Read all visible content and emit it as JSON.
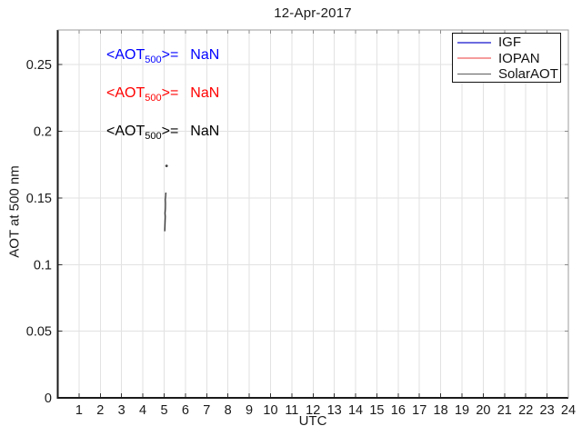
{
  "figure": {
    "background": "#ffffff",
    "grid_color": "#e2e2e2",
    "axis_color": "#1a1a1a",
    "box_color": "#9c9c9c"
  },
  "title": "12-Apr-2017",
  "annotations": [
    {
      "prefix": "<AOT",
      "sub": "500",
      "suffix": ">=",
      "value": "NaN",
      "color": "#0000ff"
    },
    {
      "prefix": "<AOT",
      "sub": "500",
      "suffix": ">=",
      "value": "NaN",
      "color": "#ff0000"
    },
    {
      "prefix": "<AOT",
      "sub": "500",
      "suffix": ">=",
      "value": "NaN",
      "color": "#000000"
    }
  ],
  "legend": {
    "items": [
      {
        "label": "IGF",
        "color": "#6b6bdf",
        "thickness": 2
      },
      {
        "label": "IOPAN",
        "color": "#f59c9c",
        "thickness": 2
      },
      {
        "label": "SolarAOT",
        "color": "#5c5c5c",
        "thickness": 1
      }
    ]
  },
  "chart_data": {
    "type": "line",
    "title": "12-Apr-2017",
    "xlabel": "UTC",
    "ylabel": "AOT at 500 nm",
    "xlim": [
      0,
      24
    ],
    "ylim": [
      0,
      0.276
    ],
    "xticks": [
      1,
      2,
      3,
      4,
      5,
      6,
      7,
      8,
      9,
      10,
      11,
      12,
      13,
      14,
      15,
      16,
      17,
      18,
      19,
      20,
      21,
      22,
      23,
      24
    ],
    "yticks": [
      0,
      0.05,
      0.1,
      0.15,
      0.2,
      0.25
    ],
    "ytick_labels": [
      "0",
      "0.05",
      "0.1",
      "0.15",
      "0.2",
      "0.25"
    ],
    "grid": true,
    "legend_position": "top-right",
    "series": [
      {
        "name": "IGF",
        "color": "#0000ff",
        "points": [],
        "isolated_points": []
      },
      {
        "name": "IOPAN",
        "color": "#ff0000",
        "points": [],
        "isolated_points": []
      },
      {
        "name": "SolarAOT",
        "color": "#3d3d3d",
        "points": [
          [
            5.03,
            0.125
          ],
          [
            5.04,
            0.129
          ],
          [
            5.05,
            0.133
          ],
          [
            5.055,
            0.136
          ],
          [
            5.045,
            0.1385
          ],
          [
            5.06,
            0.142
          ],
          [
            5.065,
            0.146
          ],
          [
            5.055,
            0.149
          ],
          [
            5.075,
            0.1515
          ],
          [
            5.08,
            0.154
          ]
        ],
        "isolated_points": [
          [
            5.115,
            0.174
          ]
        ]
      }
    ]
  }
}
